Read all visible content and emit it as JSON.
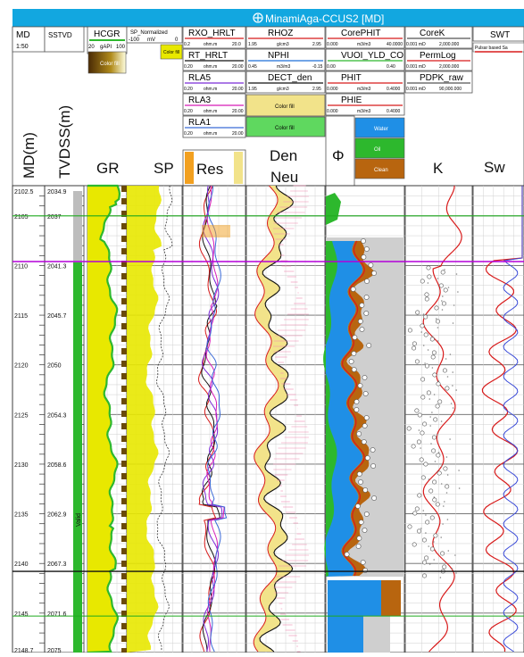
{
  "window": {
    "title": "MinamiAga-CCUS2 [MD]"
  },
  "tracks": {
    "md": {
      "label": "MD",
      "scale": "1:50",
      "title": "MD(m)"
    },
    "tvd": {
      "label": "SSTVD",
      "title": "TVDSS(m)",
      "zone_label": "Valid"
    },
    "gr": {
      "curve": "HCGR",
      "scale_left": "20",
      "unit": "gAPI",
      "scale_right": "100",
      "fill_label": "Color fill",
      "title": "GR"
    },
    "sp": {
      "curve": "SP_Normalized",
      "scale_left": "-100",
      "unit": "mV",
      "scale_right": "0",
      "fill_label": "Color fill",
      "title": "SP"
    },
    "res": {
      "title": "Res",
      "curves": [
        {
          "name": "RXO_HRLT",
          "left": "0.2",
          "unit": "ohm.m",
          "right": "20.0"
        },
        {
          "name": "RT_HRLT",
          "left": "0.20",
          "unit": "ohm.m",
          "right": "20.00"
        },
        {
          "name": "RLA5",
          "left": "0.20",
          "unit": "ohm.m",
          "right": "20.00"
        },
        {
          "name": "RLA3",
          "left": "0.20",
          "unit": "ohm.m",
          "right": "20.00"
        },
        {
          "name": "RLA1",
          "left": "0.20",
          "unit": "ohm.m",
          "right": "20.00"
        }
      ]
    },
    "den": {
      "title_line1": "Den",
      "title_line2": "Neu",
      "curves": [
        {
          "name": "RHOZ",
          "left": "1.95",
          "unit": "g/cm3",
          "right": "2.95"
        },
        {
          "name": "NPHI",
          "left": "0.45",
          "unit": "m3/m3",
          "right": "-0.15"
        },
        {
          "name": "DECT_den",
          "left": "1.95",
          "unit": "g/cm3",
          "right": "2.95"
        }
      ],
      "fill1": "Color fill",
      "fill2": "Color fill"
    },
    "phi": {
      "title": "Φ",
      "curves": [
        {
          "name": "CorePHIT",
          "left": "0.000",
          "unit": "m3/m3",
          "right": "40.0000"
        },
        {
          "name": "VUOI_YLD_CO",
          "left": "0.00",
          "unit": "",
          "right": "0.40"
        },
        {
          "name": "PHIT",
          "left": "0.000",
          "unit": "m3/m3",
          "right": "0.4000"
        },
        {
          "name": "PHIE",
          "left": "0.000",
          "unit": "m3/m3",
          "right": "0.4000"
        }
      ],
      "legend": [
        "Water",
        "Oil",
        "Clean"
      ]
    },
    "k": {
      "title": "K",
      "curves": [
        {
          "name": "CoreK",
          "left": "0.001 mD",
          "right": "2,000.000"
        },
        {
          "name": "PermLog",
          "left": "0.001 mD",
          "right": "2,000.000"
        },
        {
          "name": "PDPK_raw",
          "left": "0.001 mD",
          "right": "90,000.000"
        }
      ]
    },
    "sw": {
      "title": "Sw",
      "curve": "SWT",
      "note": "Pulsar based Sa"
    }
  },
  "depths": {
    "md_labels": [
      "2102.5",
      "2105",
      "2110",
      "2115",
      "2120",
      "2125",
      "2130",
      "2135",
      "2140",
      "2145",
      "2148.7"
    ],
    "tvd_labels": [
      "2034.9",
      "2037",
      "2041.3",
      "2045.7",
      "2050",
      "2054.3",
      "2058.6",
      "2062.9",
      "2067.3",
      "2071.6",
      "2075"
    ]
  },
  "colors": {
    "gr_fill": "#e8e800",
    "gr_curve": "#2db82d",
    "water": "#1f8fe6",
    "oil": "#2db82d",
    "clean": "#b8650f",
    "den_fill": "#f2e38a",
    "res_red": "#d81b1b",
    "marker_magenta": "#b400d8",
    "marker_green": "#1faa1f"
  }
}
